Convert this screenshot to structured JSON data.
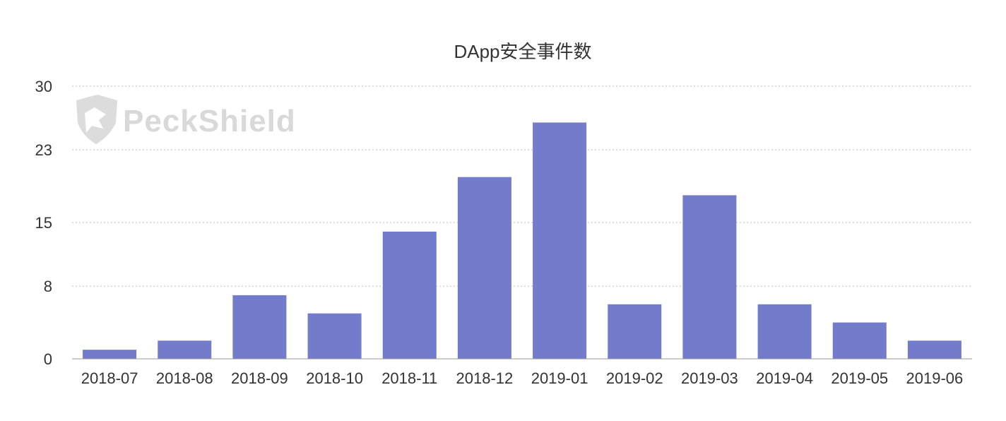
{
  "chart_data": {
    "type": "bar",
    "title": "DApp安全事件数",
    "categories": [
      "2018-07",
      "2018-08",
      "2018-09",
      "2018-10",
      "2018-11",
      "2018-12",
      "2019-01",
      "2019-02",
      "2019-03",
      "2019-04",
      "2019-05",
      "2019-06"
    ],
    "values": [
      1,
      2,
      7,
      5,
      14,
      20,
      26,
      6,
      18,
      6,
      4,
      2
    ],
    "yticks": [
      "0",
      "8",
      "15",
      "23",
      "30"
    ],
    "ylim": [
      0,
      30
    ],
    "grid": true,
    "bar_color": "#727ccb",
    "xlabel": "",
    "ylabel": ""
  },
  "watermark": {
    "text": "PeckShield",
    "icon": "shield-icon"
  }
}
